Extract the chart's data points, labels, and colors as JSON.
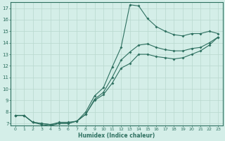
{
  "xlabel": "Humidex (Indice chaleur)",
  "bg_color": "#d4eee8",
  "line_color": "#2e7060",
  "grid_color": "#b8d8ce",
  "xlim": [
    -0.5,
    23.5
  ],
  "ylim": [
    6.8,
    17.5
  ],
  "xticks": [
    0,
    1,
    2,
    3,
    4,
    5,
    6,
    7,
    8,
    9,
    10,
    11,
    12,
    13,
    14,
    15,
    16,
    17,
    18,
    19,
    20,
    21,
    22,
    23
  ],
  "yticks": [
    7,
    8,
    9,
    10,
    11,
    12,
    13,
    14,
    15,
    16,
    17
  ],
  "line1_x": [
    0,
    1,
    2,
    3,
    4,
    5,
    6,
    7,
    8,
    9,
    10,
    11,
    12,
    13,
    14,
    15,
    16,
    17,
    18,
    19,
    20,
    21,
    22,
    23
  ],
  "line1_y": [
    7.7,
    7.7,
    7.1,
    6.9,
    6.8,
    7.0,
    7.0,
    7.2,
    8.0,
    9.4,
    10.1,
    11.9,
    13.6,
    17.3,
    17.2,
    16.1,
    15.4,
    15.0,
    14.7,
    14.6,
    14.8,
    14.8,
    15.0,
    14.8
  ],
  "line2_x": [
    0,
    1,
    2,
    3,
    4,
    5,
    6,
    7,
    8,
    9,
    10,
    11,
    12,
    13,
    14,
    15,
    16,
    17,
    18,
    19,
    20,
    21,
    22,
    23
  ],
  "line2_y": [
    7.7,
    7.7,
    7.1,
    7.0,
    6.9,
    7.1,
    7.1,
    7.2,
    7.8,
    9.1,
    9.7,
    11.0,
    12.5,
    13.2,
    13.8,
    13.9,
    13.6,
    13.4,
    13.3,
    13.3,
    13.5,
    13.6,
    14.0,
    14.5
  ],
  "line3_x": [
    0,
    1,
    2,
    3,
    4,
    5,
    6,
    7,
    8,
    9,
    10,
    11,
    12,
    13,
    14,
    15,
    16,
    17,
    18,
    19,
    20,
    21,
    22,
    23
  ],
  "line3_y": [
    7.7,
    7.7,
    7.1,
    7.0,
    6.9,
    7.0,
    7.0,
    7.2,
    7.8,
    9.0,
    9.5,
    10.5,
    11.8,
    12.2,
    13.0,
    13.0,
    12.8,
    12.7,
    12.6,
    12.7,
    13.0,
    13.3,
    13.8,
    14.5
  ]
}
